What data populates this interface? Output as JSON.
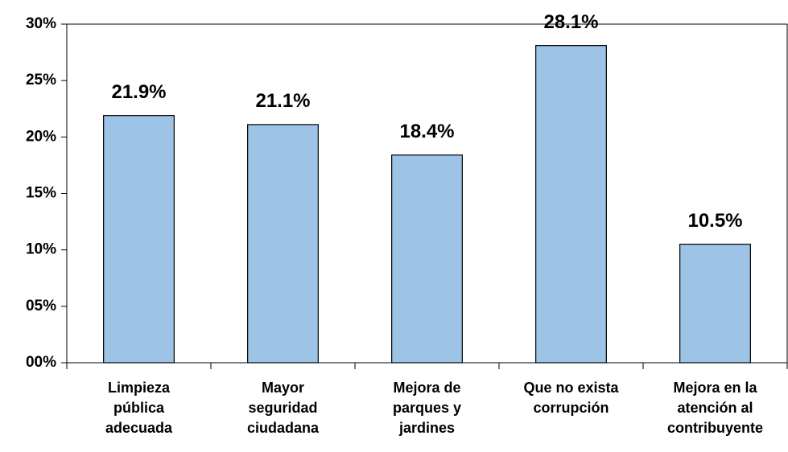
{
  "chart_data": {
    "type": "bar",
    "categories": [
      "Limpieza pública adecuada",
      "Mayor seguridad ciudadana",
      "Mejora de parques y jardines",
      "Que no exista corrupción",
      "Mejora en la atención al contribuyente"
    ],
    "values": [
      21.9,
      21.1,
      18.4,
      28.1,
      10.5
    ],
    "value_labels": [
      "21.9%",
      "21.1%",
      "18.4%",
      "28.1%",
      "10.5%"
    ],
    "color": "#9dc3e6",
    "ylim": [
      0,
      30
    ],
    "yticks": [
      {
        "value": 0,
        "label": "00%"
      },
      {
        "value": 5,
        "label": "05%"
      },
      {
        "value": 10,
        "label": "10%"
      },
      {
        "value": 15,
        "label": "15%"
      },
      {
        "value": 20,
        "label": "20%"
      },
      {
        "value": 25,
        "label": "25%"
      },
      {
        "value": 30,
        "label": "30%"
      }
    ],
    "grid": false
  }
}
